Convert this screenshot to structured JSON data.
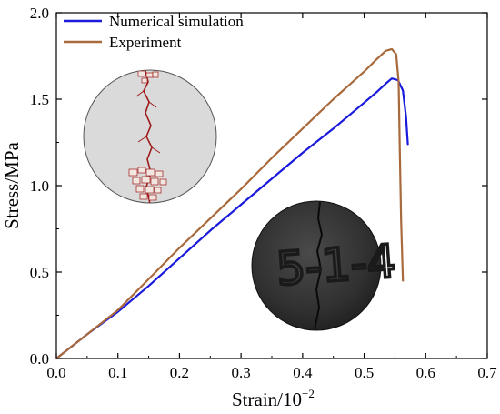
{
  "chart_data": {
    "type": "line",
    "title": "",
    "xlabel": "Strain/10",
    "xlabel_exponent": "−2",
    "ylabel": "Stress/MPa",
    "xlim": [
      0.0,
      0.7
    ],
    "ylim": [
      0.0,
      2.0
    ],
    "xticks": [
      "0.0",
      "0.1",
      "0.2",
      "0.3",
      "0.4",
      "0.5",
      "0.6",
      "0.7"
    ],
    "yticks": [
      "0.0",
      "0.5",
      "1.0",
      "1.5",
      "2.0"
    ],
    "grid": false,
    "legend_position": "top-left",
    "series": [
      {
        "name": "Numerical simulation",
        "color": "#1a1adc",
        "x": [
          0.0,
          0.05,
          0.1,
          0.15,
          0.2,
          0.25,
          0.3,
          0.35,
          0.4,
          0.45,
          0.5,
          0.52,
          0.535,
          0.545,
          0.555,
          0.563,
          0.568,
          0.571
        ],
        "y": [
          0.0,
          0.14,
          0.27,
          0.42,
          0.58,
          0.74,
          0.89,
          1.04,
          1.19,
          1.33,
          1.48,
          1.54,
          1.59,
          1.62,
          1.61,
          1.55,
          1.4,
          1.24
        ]
      },
      {
        "name": "Experiment",
        "color": "#a86a3c",
        "x": [
          0.0,
          0.05,
          0.1,
          0.15,
          0.2,
          0.25,
          0.3,
          0.35,
          0.4,
          0.45,
          0.5,
          0.52,
          0.535,
          0.545,
          0.552,
          0.556,
          0.558,
          0.56,
          0.563
        ],
        "y": [
          0.0,
          0.14,
          0.28,
          0.46,
          0.64,
          0.81,
          0.98,
          1.16,
          1.33,
          1.5,
          1.66,
          1.73,
          1.78,
          1.79,
          1.76,
          1.6,
          1.2,
          0.8,
          0.45
        ]
      }
    ],
    "insets": [
      {
        "name": "simulated-crack-disc"
      },
      {
        "name": "specimen-photo",
        "text": "5-1-4"
      }
    ]
  },
  "colors": {
    "axis": "#000000",
    "simulation_disc_fill": "#d9d9d9",
    "crack_red": "#9e1b1b",
    "photo_dark": "#2f2f2f"
  }
}
